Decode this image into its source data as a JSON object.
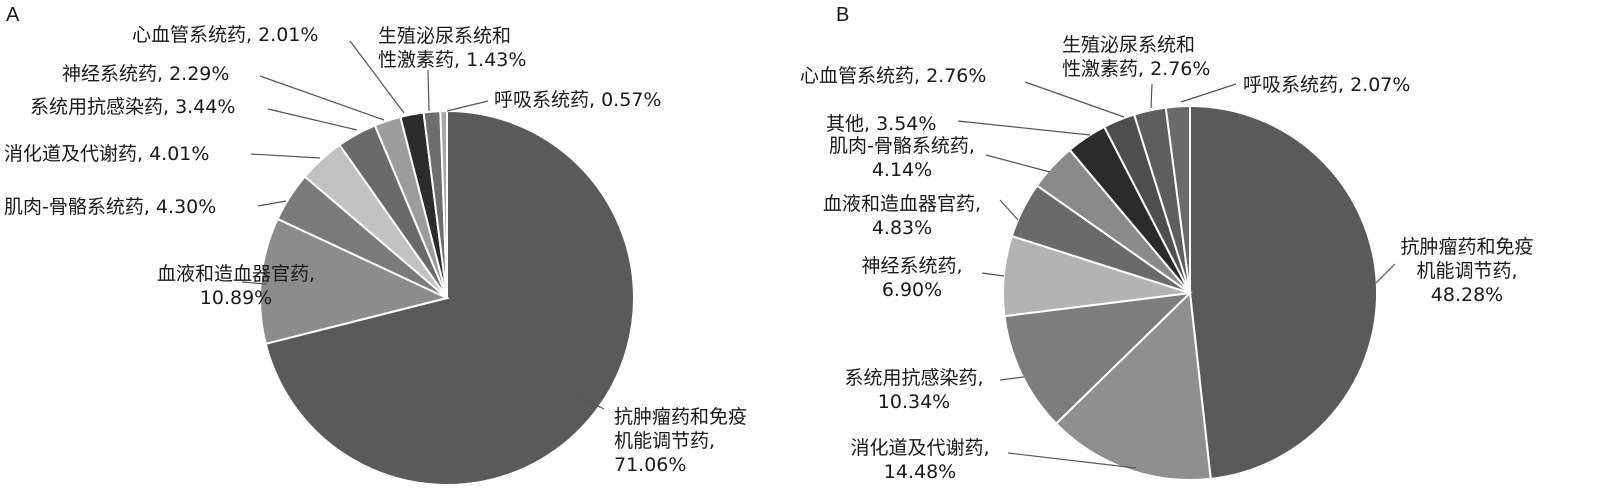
{
  "chart_data": [
    {
      "type": "pie",
      "panel_label": "A",
      "slices": [
        {
          "name": "抗肿瘤药和免疫机能调节药",
          "label_lines": [
            "抗肿瘤药和免疫",
            "机能调节药,",
            "71.06%"
          ],
          "value": 71.06,
          "color": "#5a5a5a"
        },
        {
          "name": "血液和造血器官药",
          "label_lines": [
            "血液和造血器官药,",
            "10.89%"
          ],
          "value": 10.89,
          "color": "#8c8c8c"
        },
        {
          "name": "肌肉-骨骼系统药",
          "label_lines": [
            "肌肉-骨骼系统药, 4.30%"
          ],
          "value": 4.3,
          "color": "#7a7a7a"
        },
        {
          "name": "消化道及代谢药",
          "label_lines": [
            "消化道及代谢药, 4.01%"
          ],
          "value": 4.01,
          "color": "#c2c2c2"
        },
        {
          "name": "系统用抗感染药",
          "label_lines": [
            "系统用抗感染药, 3.44%"
          ],
          "value": 3.44,
          "color": "#6a6a6a"
        },
        {
          "name": "神经系统药",
          "label_lines": [
            "神经系统药, 2.29%"
          ],
          "value": 2.29,
          "color": "#9c9c9c"
        },
        {
          "name": "心血管系统药",
          "label_lines": [
            "心血管系统药, 2.01%"
          ],
          "value": 2.01,
          "color": "#2b2b2b"
        },
        {
          "name": "生殖泌尿系统和性激素药",
          "label_lines": [
            "生殖泌尿系统和",
            "性激素药, 1.43%"
          ],
          "value": 1.43,
          "color": "#6e6e6e"
        },
        {
          "name": "呼吸系统药",
          "label_lines": [
            "呼吸系统药, 0.57%"
          ],
          "value": 0.57,
          "color": "#a8a8a8"
        }
      ]
    },
    {
      "type": "pie",
      "panel_label": "B",
      "slices": [
        {
          "name": "抗肿瘤药和免疫机能调节药",
          "label_lines": [
            "抗肿瘤药和免疫",
            "机能调节药,",
            "48.28%"
          ],
          "value": 48.28,
          "color": "#5a5a5a"
        },
        {
          "name": "消化道及代谢药",
          "label_lines": [
            "消化道及代谢药,",
            "14.48%"
          ],
          "value": 14.48,
          "color": "#8f8f8f"
        },
        {
          "name": "系统用抗感染药",
          "label_lines": [
            "系统用抗感染药,",
            "10.34%"
          ],
          "value": 10.34,
          "color": "#7d7d7d"
        },
        {
          "name": "神经系统药",
          "label_lines": [
            "神经系统药,",
            "6.90%"
          ],
          "value": 6.9,
          "color": "#b3b3b3"
        },
        {
          "name": "血液和造血器官药",
          "label_lines": [
            "血液和造血器官药,",
            "4.83%"
          ],
          "value": 4.83,
          "color": "#6a6a6a"
        },
        {
          "name": "肌肉-骨骼系统药",
          "label_lines": [
            "肌肉-骨骼系统药,",
            "4.14%"
          ],
          "value": 4.14,
          "color": "#8a8a8a"
        },
        {
          "name": "其他",
          "label_lines": [
            "其他, 3.54%"
          ],
          "value": 3.54,
          "color": "#2b2b2b"
        },
        {
          "name": "心血管系统药",
          "label_lines": [
            "心血管系统药, 2.76%"
          ],
          "value": 2.76,
          "color": "#4e4e4e"
        },
        {
          "name": "生殖泌尿系统和性激素药",
          "label_lines": [
            "生殖泌尿系统和",
            "性激素药, 2.76%"
          ],
          "value": 2.76,
          "color": "#5e5e5e"
        },
        {
          "name": "呼吸系统药",
          "label_lines": [
            "呼吸系统药, 2.07%"
          ],
          "value": 2.07,
          "color": "#6a6a6a"
        }
      ]
    }
  ]
}
